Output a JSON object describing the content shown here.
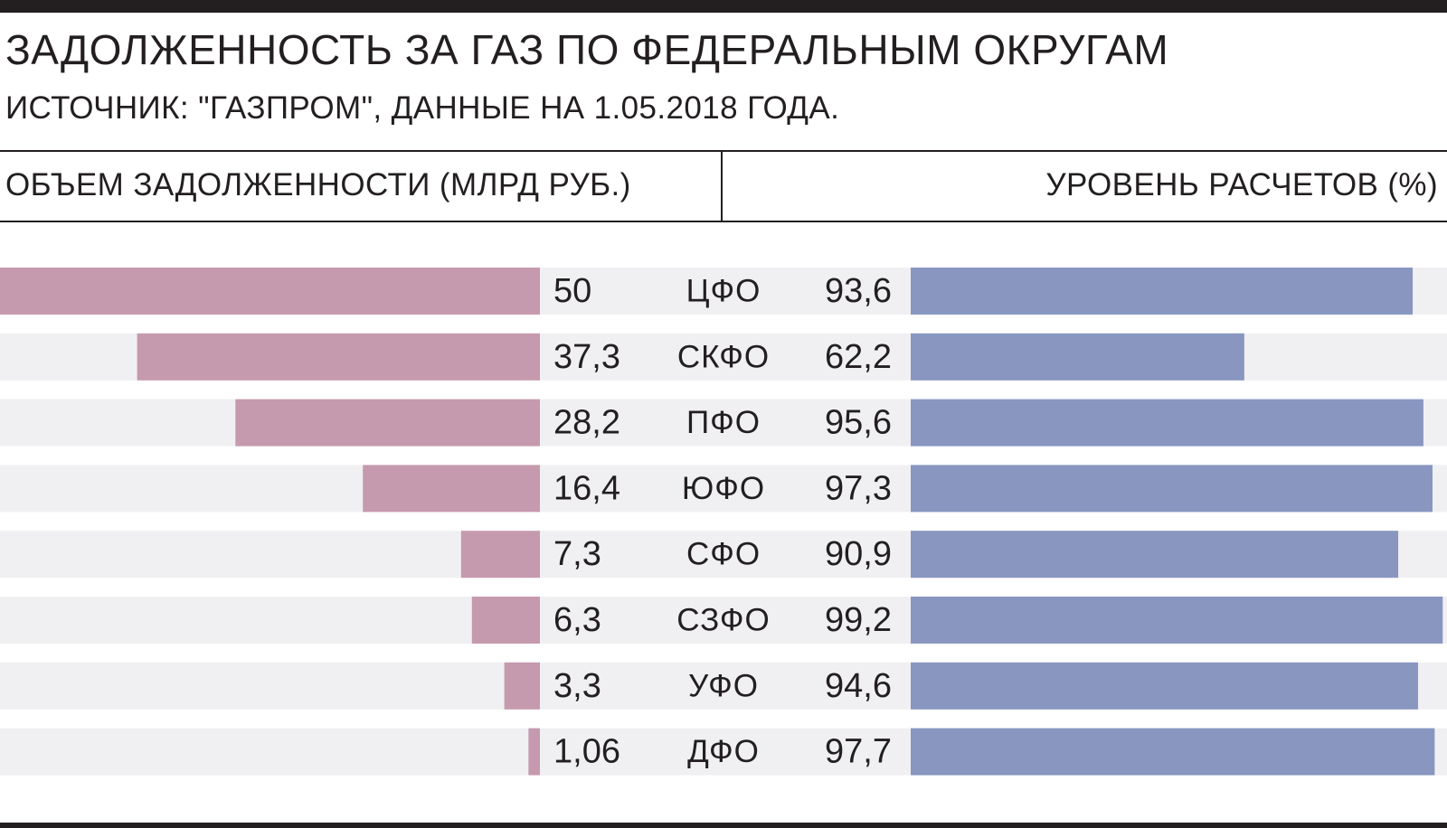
{
  "title": "ЗАДОЛЖЕННОСТЬ ЗА ГАЗ ПО ФЕДЕРАЛЬНЫМ ОКРУГАМ",
  "subtitle": "ИСТОЧНИК: \"ГАЗПРОМ\", ДАННЫЕ НА 1.05.2018 ГОДА.",
  "columns": {
    "left_header": "ОБЪЕМ ЗАДОЛЖЕННОСТИ (МЛРД РУБ.)",
    "right_header": "УРОВЕНЬ РАСЧЕТОВ (%)"
  },
  "colors": {
    "debt_bar": "#c69aae",
    "payment_bar": "#8896c0",
    "row_background": "#f0f0f2",
    "text": "#231f20"
  },
  "chart_data": {
    "type": "bar",
    "categories": [
      "ЦФО",
      "СКФО",
      "ПФО",
      "ЮФО",
      "СФО",
      "СЗФО",
      "УФО",
      "ДФО"
    ],
    "series": [
      {
        "name": "ОБЪЕМ ЗАДОЛЖЕННОСТИ (МЛРД РУБ.)",
        "values": [
          50,
          37.3,
          28.2,
          16.4,
          7.3,
          6.3,
          3.3,
          1.06
        ],
        "labels": [
          "50",
          "37,3",
          "28,2",
          "16,4",
          "7,3",
          "6,3",
          "3,3",
          "1,06"
        ],
        "direction": "left",
        "xlim": [
          0,
          50
        ]
      },
      {
        "name": "УРОВЕНЬ РАСЧЕТОВ (%)",
        "values": [
          93.6,
          62.2,
          95.6,
          97.3,
          90.9,
          99.2,
          94.6,
          97.7
        ],
        "labels": [
          "93,6",
          "62,2",
          "95,6",
          "97,3",
          "90,9",
          "99,2",
          "94,6",
          "97,7"
        ],
        "direction": "right",
        "xlim": [
          0,
          100
        ]
      }
    ]
  }
}
